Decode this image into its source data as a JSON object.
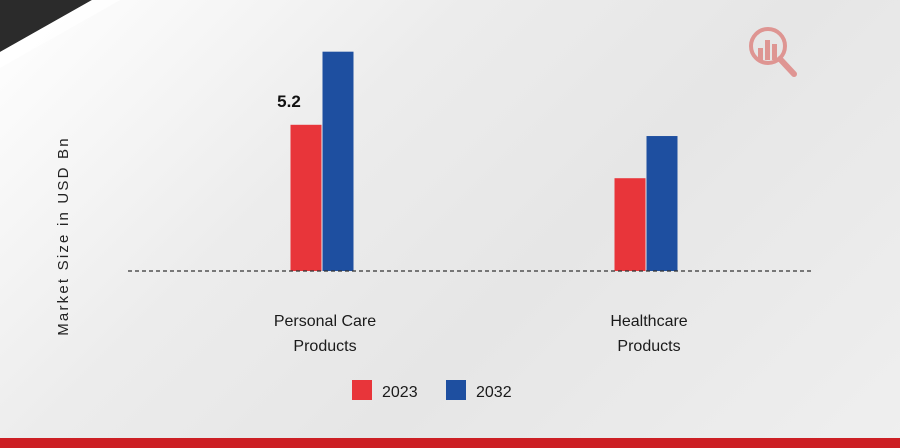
{
  "chart_data": {
    "type": "bar",
    "title": "",
    "xlabel": "",
    "ylabel": "Market Size in USD Bn",
    "categories": [
      "Personal Care Products",
      "Healthcare Products"
    ],
    "category_lines": [
      [
        "Personal Care",
        "Products"
      ],
      [
        "Healthcare",
        "Products"
      ]
    ],
    "series": [
      {
        "name": "2023",
        "color": "#e8353a",
        "values": [
          5.2,
          3.3
        ]
      },
      {
        "name": "2032",
        "color": "#1e4fa0",
        "values": [
          7.8,
          4.8
        ]
      }
    ],
    "data_labels": [
      {
        "series": 0,
        "category": 0,
        "text": "5.2"
      }
    ],
    "ylim": [
      0,
      8.5
    ],
    "grid": false,
    "legend_position": "bottom"
  },
  "colors": {
    "banner": "#cc1f24",
    "baseline": "#333333",
    "logo": "#d9534f"
  },
  "logo_icon": "magnifier-bar-chart-icon"
}
